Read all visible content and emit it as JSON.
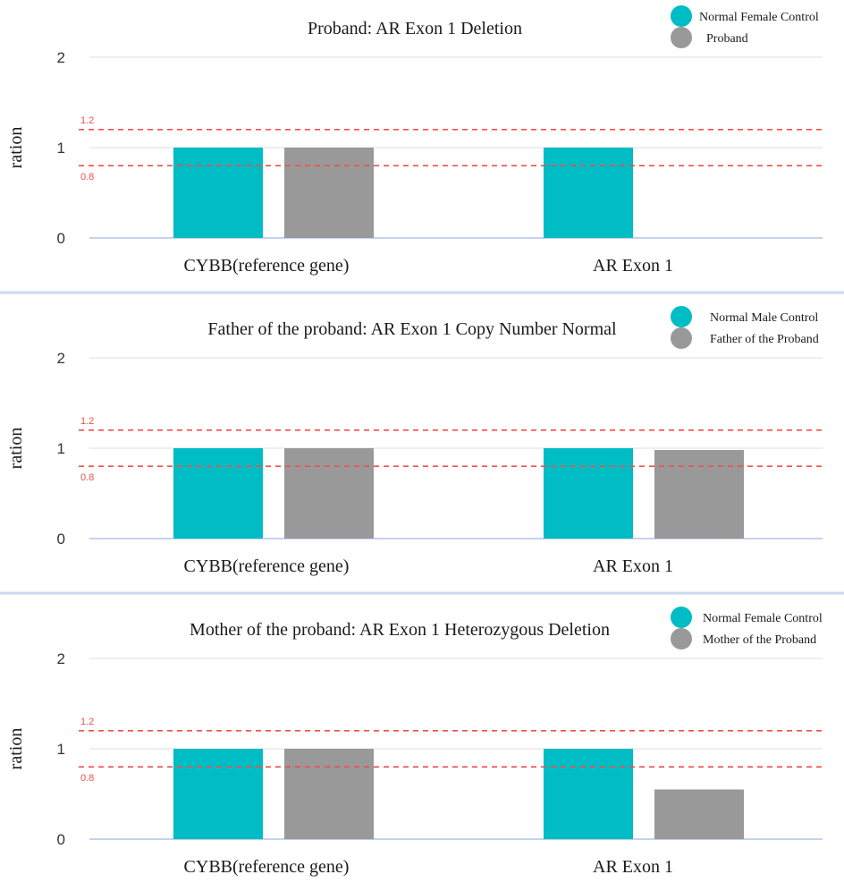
{
  "colors": {
    "control": "#00BCC4",
    "subject": "#999999",
    "threshold_line": "#F0504A",
    "grid": "#E3E3E3",
    "axis": "#C6D2EE",
    "panel_divider": "#C9D8F2"
  },
  "chart_data": [
    {
      "type": "bar",
      "title": "Proband: AR Exon 1 Deletion",
      "ylabel": "ration",
      "xlabel": "",
      "categories": [
        "CYBB(reference gene)",
        "AR Exon 1"
      ],
      "series": [
        {
          "name": "Normal Female Control",
          "values": [
            1.0,
            1.0
          ]
        },
        {
          "name": "Proband",
          "values": [
            1.0,
            0.0
          ]
        }
      ],
      "ylim": [
        0,
        2
      ],
      "yticks": [
        "0",
        "1",
        "2"
      ],
      "reference_lines": [
        {
          "value": 1.2,
          "label": "1.2"
        },
        {
          "value": 0.8,
          "label": "0.8"
        }
      ],
      "grid": true,
      "legend": "top-right"
    },
    {
      "type": "bar",
      "title": "Father of the proband: AR Exon 1 Copy Number Normal",
      "ylabel": "ration",
      "xlabel": "",
      "categories": [
        "CYBB(reference gene)",
        "AR Exon 1"
      ],
      "series": [
        {
          "name": "Normal Male Control",
          "values": [
            1.0,
            1.0
          ]
        },
        {
          "name": "Father of the Proband",
          "values": [
            1.0,
            0.98
          ]
        }
      ],
      "ylim": [
        0,
        2
      ],
      "yticks": [
        "0",
        "1",
        "2"
      ],
      "reference_lines": [
        {
          "value": 1.2,
          "label": "1.2"
        },
        {
          "value": 0.8,
          "label": "0.8"
        }
      ],
      "grid": true,
      "legend": "top-right"
    },
    {
      "type": "bar",
      "title": "Mother of the proband: AR Exon 1 Heterozygous Deletion",
      "ylabel": "ration",
      "xlabel": "",
      "categories": [
        "CYBB(reference gene)",
        "AR Exon 1"
      ],
      "series": [
        {
          "name": "Normal Female Control",
          "values": [
            1.0,
            1.0
          ]
        },
        {
          "name": "Mother of the Proband",
          "values": [
            1.0,
            0.55
          ]
        }
      ],
      "ylim": [
        0,
        2
      ],
      "yticks": [
        "0",
        "1",
        "2"
      ],
      "reference_lines": [
        {
          "value": 1.2,
          "label": "1.2"
        },
        {
          "value": 0.8,
          "label": "0.8"
        }
      ],
      "grid": true,
      "legend": "top-right"
    }
  ]
}
